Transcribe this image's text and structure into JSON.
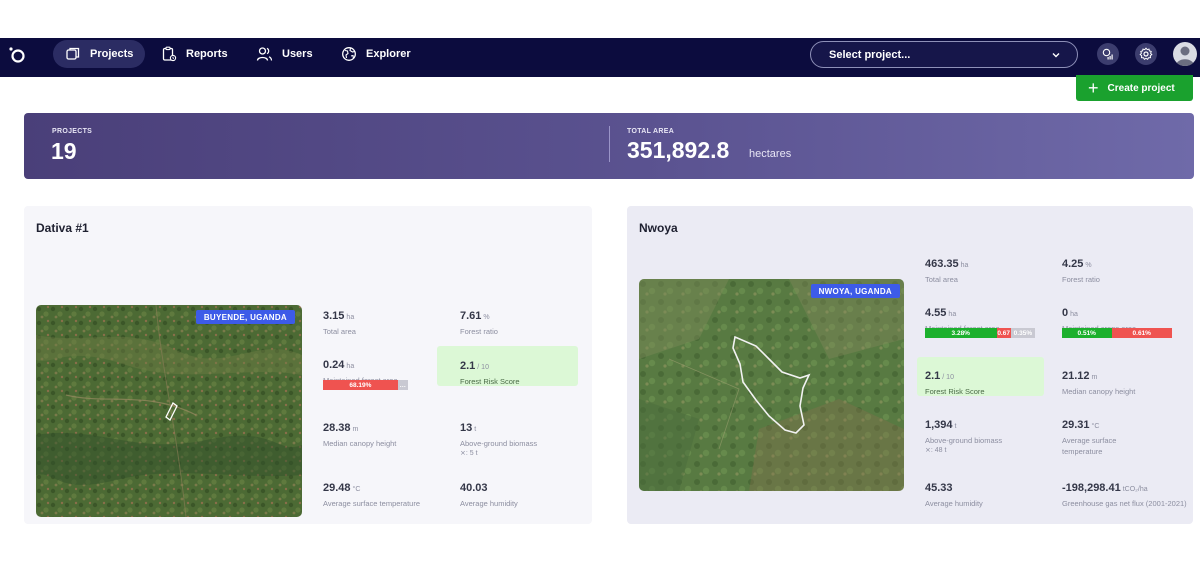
{
  "nav": {
    "items": [
      {
        "label": "Projects",
        "icon": "projects-icon",
        "active": true
      },
      {
        "label": "Reports",
        "icon": "reports-icon"
      },
      {
        "label": "Users",
        "icon": "users-icon"
      },
      {
        "label": "Explorer",
        "icon": "globe-icon"
      }
    ],
    "project_select": {
      "value": "Select project..."
    }
  },
  "actions": {
    "create_label": "Create project"
  },
  "summary": {
    "projects_label": "PROJECTS",
    "projects_value": "19",
    "area_label": "TOTAL AREA",
    "area_value": "351,892.8",
    "area_unit": "hectares"
  },
  "projects": [
    {
      "name": "Dativa #1",
      "location": "BUYENDE, UGANDA",
      "metrics": {
        "total_area": {
          "value": "3.15",
          "unit": "ha",
          "label": "Total area"
        },
        "forest_ratio": {
          "value": "7.61",
          "unit": "%",
          "label": "Forest ratio"
        },
        "maintained_forest": {
          "value": "0.24",
          "unit": "ha",
          "label": "Maintained forest area",
          "bar": [
            {
              "label": "68.19%",
              "color": "#ef5350",
              "fraction": 0.68
            },
            {
              "label": "…",
              "color": "#c9c9d2",
              "fraction": 0.09
            }
          ]
        },
        "risk": {
          "value": "2.1",
          "unit": "/ 10",
          "label": "Forest Risk Score"
        },
        "canopy": {
          "value": "28.38",
          "unit": "m",
          "label": "Median canopy height"
        },
        "biomass": {
          "value": "13",
          "unit": "t",
          "label": "Above-ground biomass",
          "sub": "⨯: 5 t"
        },
        "temperature": {
          "value": "29.48",
          "unit": "°C",
          "label": "Average surface temperature"
        },
        "humidity": {
          "value": "40.03",
          "unit": "",
          "label": "Average humidity"
        }
      }
    },
    {
      "name": "Nwoya",
      "location": "NWOYA, UGANDA",
      "metrics": {
        "total_area": {
          "value": "463.35",
          "unit": "ha",
          "label": "Total area"
        },
        "forest_ratio": {
          "value": "4.25",
          "unit": "%",
          "label": "Forest ratio"
        },
        "maintained_forest": {
          "value": "4.55",
          "unit": "ha",
          "label": "Maintained forest area",
          "bar": [
            {
              "label": "3.28%",
              "color": "#1cb02d",
              "fraction": 0.65
            },
            {
              "label": "0.67",
              "color": "#ef5350",
              "fraction": 0.13
            },
            {
              "label": "0.35%",
              "color": "#c9c9d2",
              "fraction": 0.22
            }
          ]
        },
        "maintained_crops": {
          "value": "0",
          "unit": "ha",
          "label": "Maintained crops area",
          "bar": [
            {
              "label": "0.51%",
              "color": "#1cb02d",
              "fraction": 0.45
            },
            {
              "label": "0.61%",
              "color": "#ef5350",
              "fraction": 0.55
            }
          ]
        },
        "risk": {
          "value": "2.1",
          "unit": "/ 10",
          "label": "Forest Risk Score"
        },
        "canopy": {
          "value": "21.12",
          "unit": "m",
          "label": "Median canopy height"
        },
        "biomass": {
          "value": "1,394",
          "unit": "t",
          "label": "Above-ground biomass",
          "sub": "⨯: 48 t"
        },
        "temperature": {
          "value": "29.31",
          "unit": "°C",
          "label": "Average surface temperature"
        },
        "humidity": {
          "value": "45.33",
          "unit": "",
          "label": "Average humidity"
        },
        "ghg": {
          "value": "-198,298.41",
          "unit": "tCO₂/ha",
          "label": "Greenhouse gas net flux (2001-2021)"
        }
      }
    }
  ],
  "colors": {
    "nav_bg": "#0c0c3e",
    "accent_green": "#1aa12e",
    "tag_blue": "#3d5be8"
  }
}
